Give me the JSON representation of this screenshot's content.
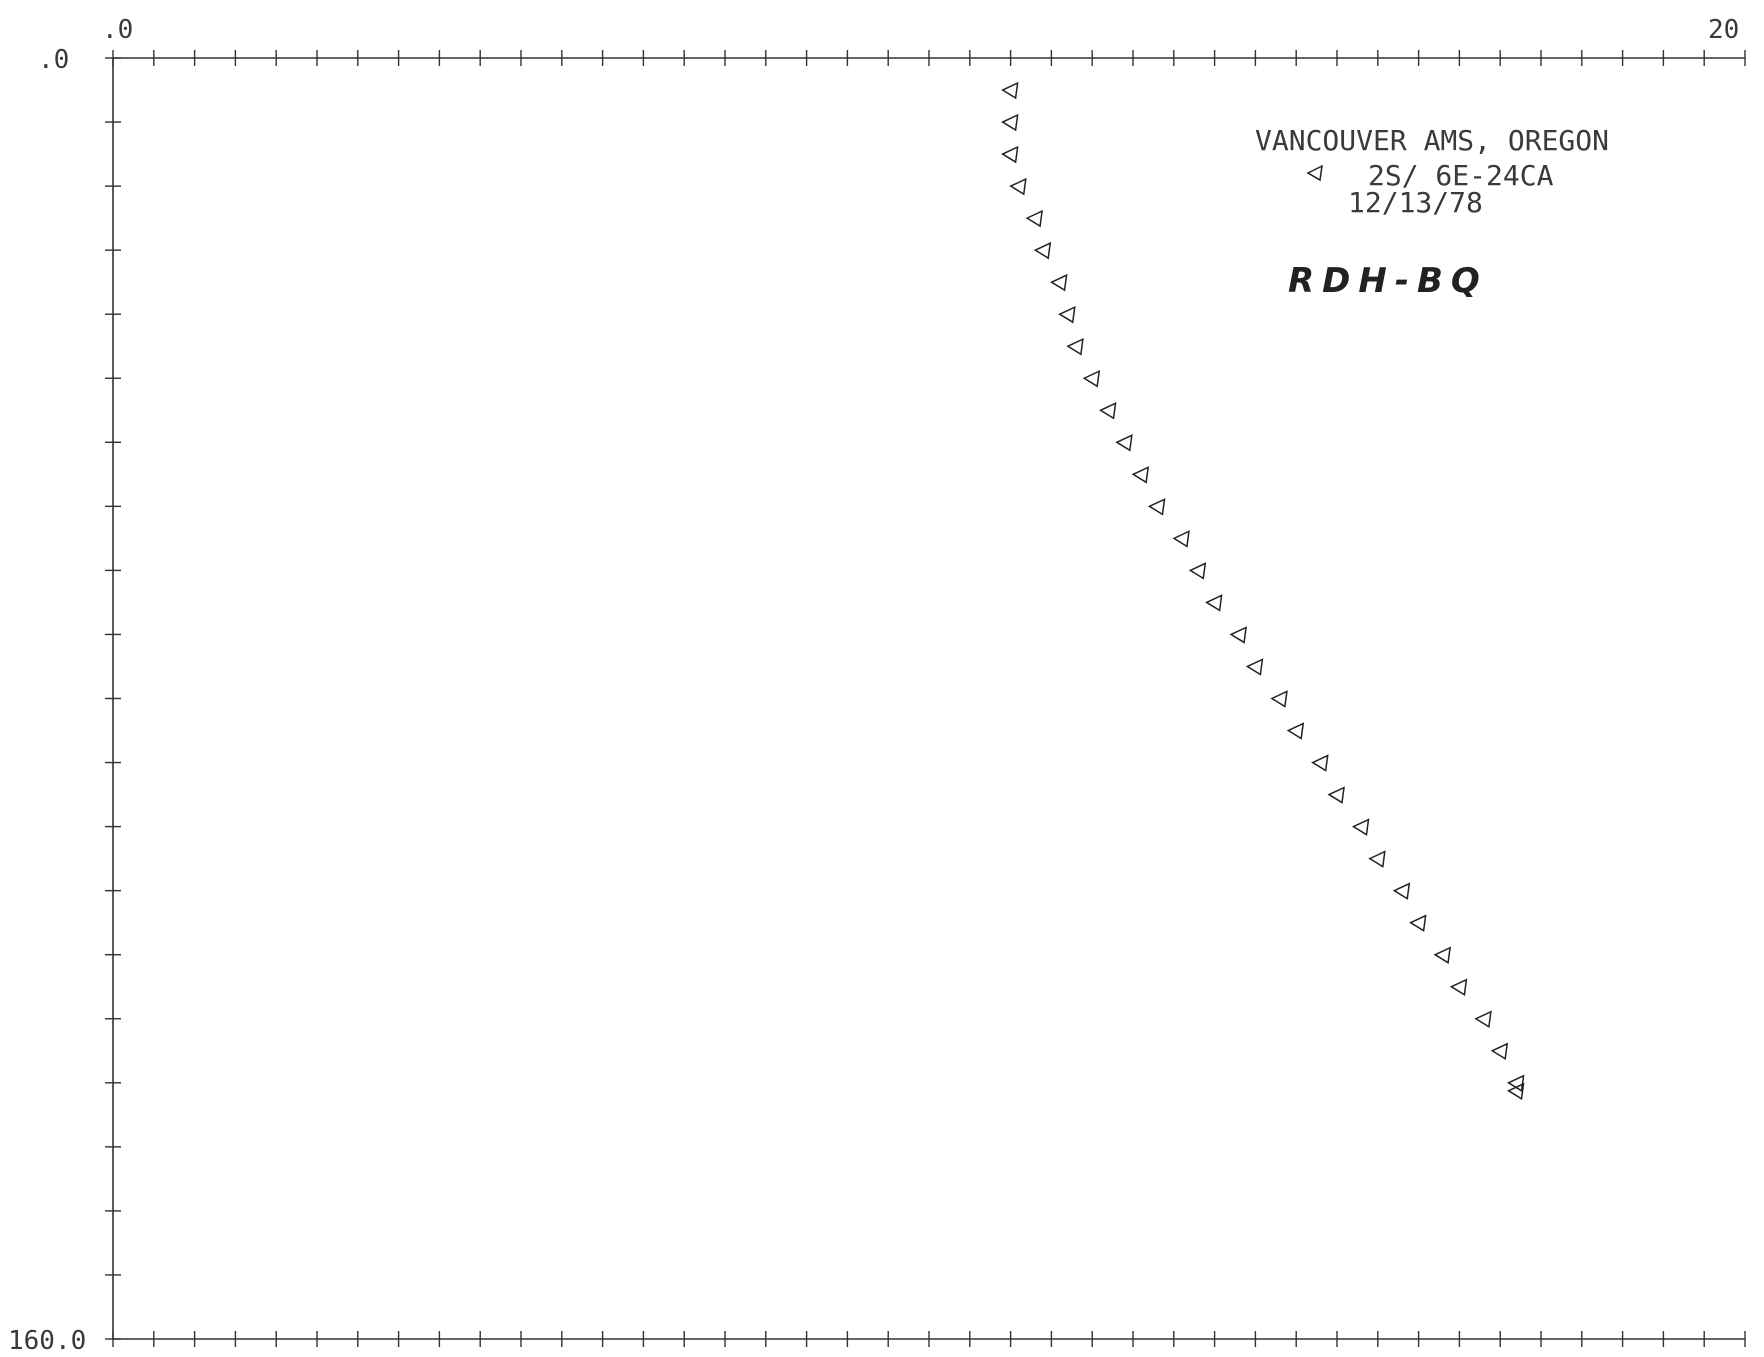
{
  "chart_data": {
    "type": "scatter",
    "title": "VANCOUVER AMS, OREGON",
    "legend": [
      {
        "marker": "left-pointing-triangle",
        "label": "2S/ 6E-24CA"
      }
    ],
    "date_label": "12/13/78",
    "handwritten_note": "RDH-BQ",
    "axes": {
      "x_axis_position": "top",
      "x_tick_labels": [
        ".0",
        "20"
      ],
      "y_tick_labels": [
        ".0",
        "160.0"
      ],
      "xlim": [
        0,
        20
      ],
      "ylim": [
        0,
        160
      ],
      "y_inverted": true,
      "x_minor_tick_step": 0.5,
      "y_tick_step": 8,
      "grid": false
    },
    "series": [
      {
        "marker": "left-pointing-triangle",
        "points": [
          {
            "x": 11.0,
            "y": 4.0
          },
          {
            "x": 11.0,
            "y": 8.0
          },
          {
            "x": 11.0,
            "y": 12.0
          },
          {
            "x": 11.1,
            "y": 16.0
          },
          {
            "x": 11.3,
            "y": 20.0
          },
          {
            "x": 11.4,
            "y": 24.0
          },
          {
            "x": 11.6,
            "y": 28.0
          },
          {
            "x": 11.7,
            "y": 32.0
          },
          {
            "x": 11.8,
            "y": 36.0
          },
          {
            "x": 12.0,
            "y": 40.0
          },
          {
            "x": 12.2,
            "y": 44.0
          },
          {
            "x": 12.4,
            "y": 48.0
          },
          {
            "x": 12.6,
            "y": 52.0
          },
          {
            "x": 12.8,
            "y": 56.0
          },
          {
            "x": 13.1,
            "y": 60.0
          },
          {
            "x": 13.3,
            "y": 64.0
          },
          {
            "x": 13.5,
            "y": 68.0
          },
          {
            "x": 13.8,
            "y": 72.0
          },
          {
            "x": 14.0,
            "y": 76.0
          },
          {
            "x": 14.3,
            "y": 80.0
          },
          {
            "x": 14.5,
            "y": 84.0
          },
          {
            "x": 14.8,
            "y": 88.0
          },
          {
            "x": 15.0,
            "y": 92.0
          },
          {
            "x": 15.3,
            "y": 96.0
          },
          {
            "x": 15.5,
            "y": 100.0
          },
          {
            "x": 15.8,
            "y": 104.0
          },
          {
            "x": 16.0,
            "y": 108.0
          },
          {
            "x": 16.3,
            "y": 112.0
          },
          {
            "x": 16.5,
            "y": 116.0
          },
          {
            "x": 16.8,
            "y": 120.0
          },
          {
            "x": 17.0,
            "y": 124.0
          },
          {
            "x": 17.2,
            "y": 128.0
          },
          {
            "x": 17.2,
            "y": 129.0
          }
        ]
      }
    ]
  }
}
